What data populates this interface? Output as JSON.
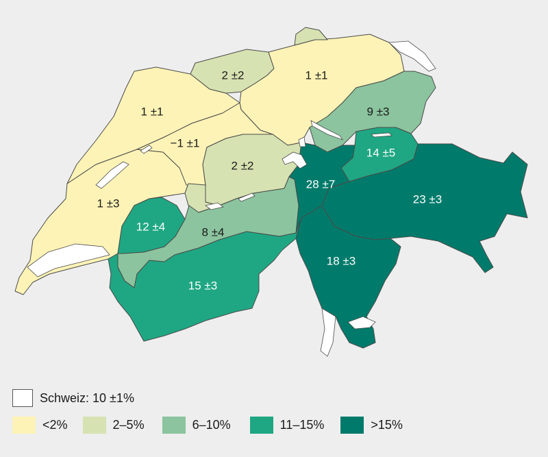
{
  "map": {
    "regions": [
      {
        "id": "basel",
        "label": "2 ±2",
        "cls": "c2"
      },
      {
        "id": "aargau_zurich",
        "label": "1 ±1",
        "cls": "c1"
      },
      {
        "id": "jura",
        "label": "1 ±1",
        "cls": "c1"
      },
      {
        "id": "bern_mittelland",
        "label": "−1 ±1",
        "cls": "c1"
      },
      {
        "id": "vaud",
        "label": "1 ±3",
        "cls": "c1"
      },
      {
        "id": "luzern_central",
        "label": "2 ±2",
        "cls": "c2"
      },
      {
        "id": "stgallen",
        "label": "9 ±3",
        "cls": "c3"
      },
      {
        "id": "appenzell_glarus",
        "label": "14 ±5",
        "cls": "c4"
      },
      {
        "id": "uri_schwyz",
        "label": "28 ±7",
        "cls": "c5"
      },
      {
        "id": "graubuenden",
        "label": "23 ±3",
        "cls": "c5"
      },
      {
        "id": "fribourg",
        "label": "12 ±4",
        "cls": "c4"
      },
      {
        "id": "bernese_oberland",
        "label": "8 ±4",
        "cls": "c3"
      },
      {
        "id": "valais",
        "label": "15 ±3",
        "cls": "c4"
      },
      {
        "id": "ticino",
        "label": "18 ±3",
        "cls": "c5"
      }
    ],
    "colors": {
      "c1": "#fdf3b6",
      "c2": "#d7e2b2",
      "c3": "#8bc49e",
      "c4": "#1fa783",
      "c5": "#007b6b"
    }
  },
  "legend": {
    "total_label": "Schweiz: 10 ±1%",
    "items": [
      {
        "label": "<2%",
        "color": "#fdf3b6"
      },
      {
        "label": "2–5%",
        "color": "#d7e2b2"
      },
      {
        "label": "6–10%",
        "color": "#8bc49e"
      },
      {
        "label": "11–15%",
        "color": "#1fa783"
      },
      {
        "label": ">15%",
        "color": "#007b6b"
      }
    ]
  }
}
